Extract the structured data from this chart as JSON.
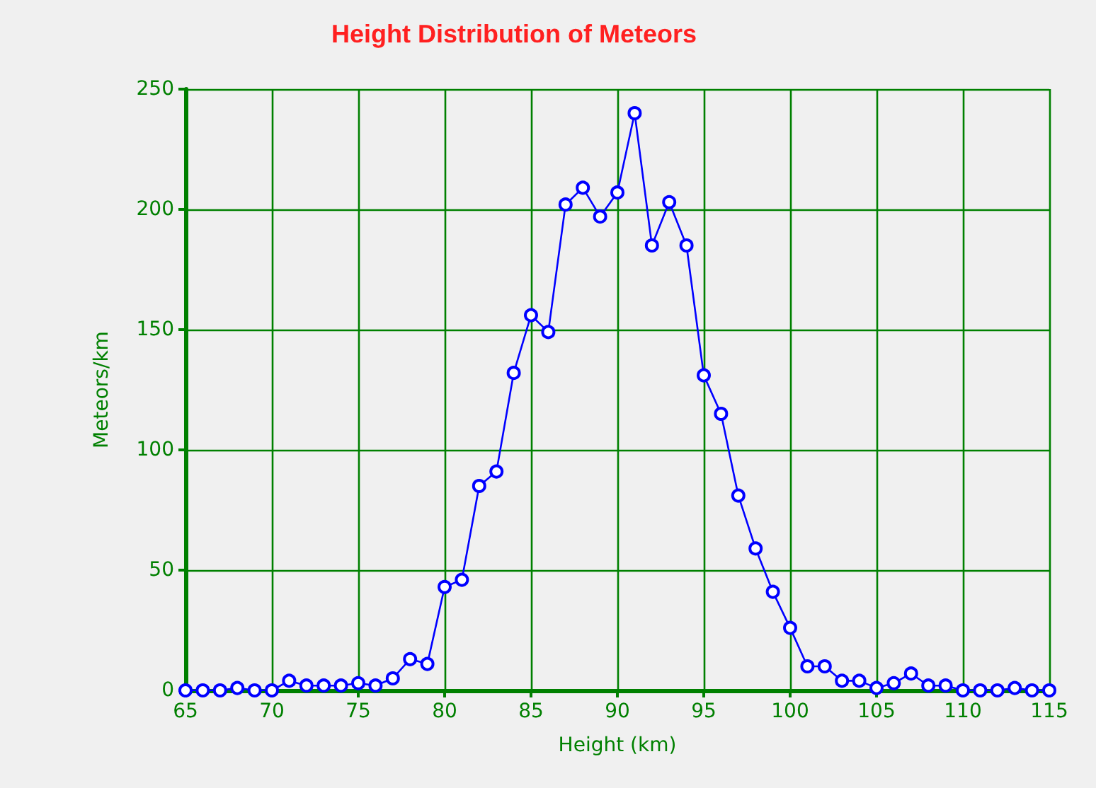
{
  "chart_data": {
    "type": "line",
    "title": "Height Distribution of Meteors",
    "xlabel": "Height (km)",
    "ylabel": "Meteors/km",
    "x": [
      65,
      66,
      67,
      68,
      69,
      70,
      71,
      72,
      73,
      74,
      75,
      76,
      77,
      78,
      79,
      80,
      81,
      82,
      83,
      84,
      85,
      86,
      87,
      88,
      89,
      90,
      91,
      92,
      93,
      94,
      95,
      96,
      97,
      98,
      99,
      100,
      101,
      102,
      103,
      104,
      105,
      106,
      107,
      108,
      109,
      110,
      111,
      112,
      113,
      114,
      115
    ],
    "series": [
      {
        "color": "#0000ff",
        "values": [
          0,
          0,
          0,
          1,
          0,
          0,
          4,
          2,
          2,
          2,
          3,
          2,
          5,
          13,
          11,
          43,
          46,
          85,
          91,
          132,
          156,
          149,
          202,
          209,
          197,
          207,
          240,
          185,
          203,
          185,
          131,
          115,
          81,
          59,
          41,
          26,
          10,
          10,
          4,
          4,
          1,
          3,
          7,
          2,
          2,
          0,
          0,
          0,
          1,
          0,
          0
        ]
      }
    ],
    "xlim": [
      65,
      115
    ],
    "xticks": [
      65,
      70,
      75,
      80,
      85,
      90,
      95,
      100,
      105,
      110,
      115
    ],
    "ylim": [
      0,
      250
    ],
    "yticks": [
      0,
      50,
      100,
      150,
      200,
      250
    ],
    "grid": true,
    "marker": "circle",
    "line_style": "solid"
  }
}
